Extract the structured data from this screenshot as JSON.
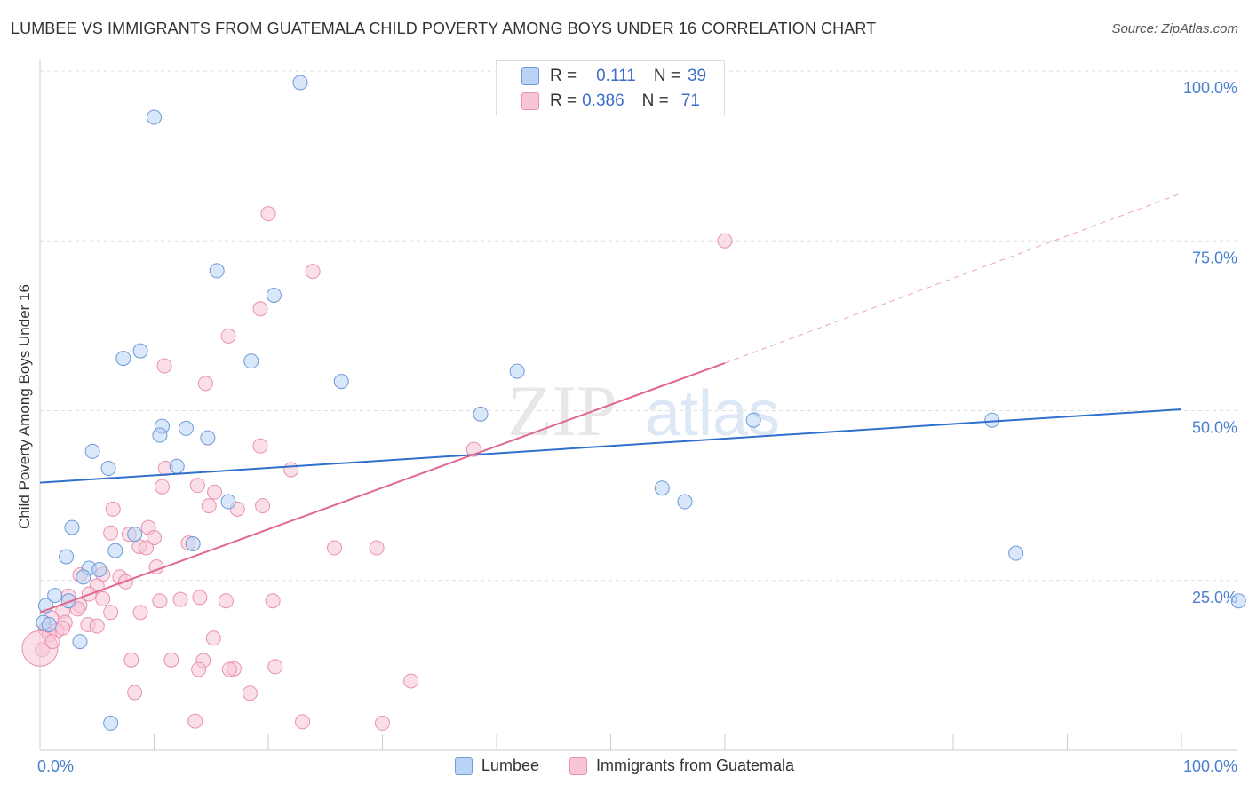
{
  "title": "LUMBEE VS IMMIGRANTS FROM GUATEMALA CHILD POVERTY AMONG BOYS UNDER 16 CORRELATION CHART",
  "source": "Source: ZipAtlas.com",
  "watermark": {
    "zip": "ZIP",
    "atlas": "atlas"
  },
  "colors": {
    "lumbee_fill": "#b9d3f5",
    "lumbee_stroke": "#6e9ad6",
    "lumbee_line": "#2f6fcd",
    "guatemala_fill": "#f7c5d5",
    "guatemala_stroke": "#e891ae",
    "guatemala_line": "#e0688f",
    "tick_label": "#4a7fd0"
  },
  "stats_legend": [
    {
      "r_label": "R =",
      "r_value": "0.111",
      "n_label": "N =",
      "n_value": "39"
    },
    {
      "r_label": "R =",
      "r_value": "0.386",
      "n_label": "N =",
      "n_value": "71"
    }
  ],
  "chart_data": {
    "type": "scatter",
    "title": "LUMBEE VS IMMIGRANTS FROM GUATEMALA CHILD POVERTY AMONG BOYS UNDER 16 CORRELATION CHART",
    "xlabel": "",
    "ylabel": "Child Poverty Among Boys Under 16",
    "xlim": [
      0,
      100
    ],
    "ylim": [
      0,
      100
    ],
    "x_tick_labels": [
      "0.0%",
      "100.0%"
    ],
    "y_tick_labels": [
      "25.0%",
      "50.0%",
      "75.0%",
      "100.0%"
    ],
    "y_ticks": [
      25,
      50,
      75,
      100
    ],
    "grid": "horizontal dashed",
    "legend_position": "bottom-center",
    "series": [
      {
        "name": "Lumbee",
        "r": 0.111,
        "n": 39,
        "trend": {
          "x0": 0,
          "y0": 39.4,
          "x1": 100,
          "y1": 50.2,
          "style": "solid"
        },
        "points": [
          [
            22.8,
            98.3
          ],
          [
            10.0,
            93.2
          ],
          [
            15.5,
            70.6
          ],
          [
            20.5,
            67.0
          ],
          [
            18.5,
            57.3
          ],
          [
            8.8,
            58.8
          ],
          [
            7.3,
            57.7
          ],
          [
            26.4,
            54.3
          ],
          [
            41.8,
            55.8
          ],
          [
            38.6,
            49.5
          ],
          [
            12.8,
            47.4
          ],
          [
            10.7,
            47.7
          ],
          [
            10.5,
            46.4
          ],
          [
            14.7,
            46.0
          ],
          [
            4.6,
            44.0
          ],
          [
            6.0,
            41.5
          ],
          [
            12.0,
            41.8
          ],
          [
            62.5,
            48.6
          ],
          [
            83.4,
            48.6
          ],
          [
            54.5,
            38.6
          ],
          [
            56.5,
            36.6
          ],
          [
            16.5,
            36.6
          ],
          [
            2.8,
            32.8
          ],
          [
            8.3,
            31.8
          ],
          [
            13.4,
            30.4
          ],
          [
            6.6,
            29.4
          ],
          [
            2.3,
            28.5
          ],
          [
            85.5,
            29.0
          ],
          [
            4.3,
            26.8
          ],
          [
            5.2,
            26.6
          ],
          [
            3.8,
            25.5
          ],
          [
            1.3,
            22.8
          ],
          [
            2.5,
            22.0
          ],
          [
            0.5,
            21.3
          ],
          [
            105.0,
            22.0
          ],
          [
            3.5,
            16.0
          ],
          [
            0.3,
            18.8
          ],
          [
            6.2,
            4.0
          ],
          [
            0.8,
            18.5
          ]
        ]
      },
      {
        "name": "Immigrants from Guatemala",
        "r": 0.386,
        "n": 71,
        "trend": {
          "x0": 0,
          "y0": 20.3,
          "x1": 60,
          "y1": 57.0,
          "dash_x1": 100,
          "dash_y1": 82.0,
          "style": "solid then dashed"
        },
        "points": [
          [
            20.0,
            79.0
          ],
          [
            60.0,
            75.0
          ],
          [
            23.9,
            70.5
          ],
          [
            19.3,
            65.0
          ],
          [
            16.5,
            61.0
          ],
          [
            10.9,
            56.6
          ],
          [
            14.5,
            54.0
          ],
          [
            19.3,
            44.8
          ],
          [
            22.0,
            41.3
          ],
          [
            11.0,
            41.5
          ],
          [
            13.8,
            39.0
          ],
          [
            10.7,
            38.8
          ],
          [
            15.3,
            38.0
          ],
          [
            38.0,
            44.3
          ],
          [
            14.8,
            36.0
          ],
          [
            17.3,
            35.5
          ],
          [
            19.5,
            36.0
          ],
          [
            6.4,
            35.5
          ],
          [
            9.5,
            32.8
          ],
          [
            6.2,
            32.0
          ],
          [
            7.8,
            31.8
          ],
          [
            10.0,
            31.3
          ],
          [
            13.0,
            30.5
          ],
          [
            8.7,
            30.0
          ],
          [
            9.3,
            29.8
          ],
          [
            25.8,
            29.8
          ],
          [
            29.5,
            29.8
          ],
          [
            10.2,
            27.0
          ],
          [
            5.5,
            25.9
          ],
          [
            7.0,
            25.5
          ],
          [
            3.5,
            25.8
          ],
          [
            7.5,
            24.8
          ],
          [
            5.0,
            24.2
          ],
          [
            4.3,
            23.0
          ],
          [
            2.5,
            22.7
          ],
          [
            5.5,
            22.3
          ],
          [
            10.5,
            22.0
          ],
          [
            12.3,
            22.2
          ],
          [
            14.0,
            22.5
          ],
          [
            16.3,
            22.0
          ],
          [
            20.4,
            22.0
          ],
          [
            3.5,
            21.3
          ],
          [
            6.2,
            20.3
          ],
          [
            8.8,
            20.3
          ],
          [
            2.0,
            20.5
          ],
          [
            3.3,
            20.8
          ],
          [
            1.0,
            19.5
          ],
          [
            2.2,
            18.8
          ],
          [
            4.2,
            18.5
          ],
          [
            5.0,
            18.3
          ],
          [
            1.5,
            17.6
          ],
          [
            0.5,
            17.8
          ],
          [
            0.8,
            17.0
          ],
          [
            2.0,
            18.0
          ],
          [
            0.2,
            14.8
          ],
          [
            15.2,
            16.5
          ],
          [
            8.0,
            13.3
          ],
          [
            11.5,
            13.3
          ],
          [
            14.3,
            13.2
          ],
          [
            13.9,
            11.9
          ],
          [
            17.0,
            12.0
          ],
          [
            20.6,
            12.3
          ],
          [
            16.6,
            11.9
          ],
          [
            32.5,
            10.2
          ],
          [
            8.3,
            8.5
          ],
          [
            18.4,
            8.4
          ],
          [
            13.6,
            4.3
          ],
          [
            23.0,
            4.2
          ],
          [
            30.0,
            4.0
          ],
          [
            0.0,
            15.0
          ],
          [
            1.1,
            16.0
          ]
        ]
      }
    ]
  }
}
